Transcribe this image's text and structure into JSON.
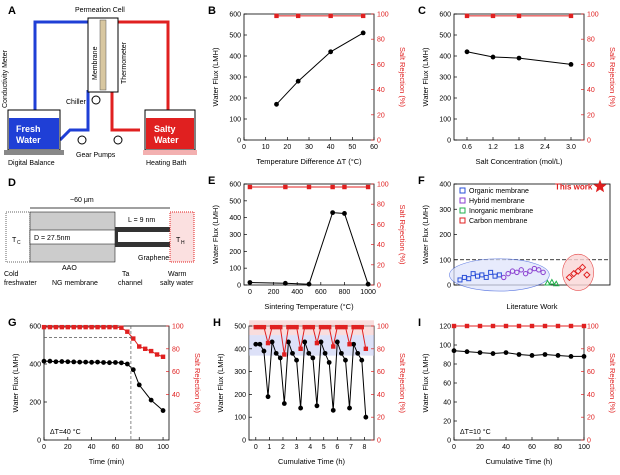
{
  "panel_A": {
    "label": "A",
    "permeation_cell": "Permeation Cell",
    "membrane": "Membrane",
    "thermometer": "Thermometer",
    "chiller": "Chiller",
    "fresh_water": [
      "Fresh",
      "Water"
    ],
    "salty_water": [
      "Salty",
      "Water"
    ],
    "conductivity_meter": "Conductivity Meter",
    "digital_balance": "Digital Balance",
    "gear_pumps": "Gear Pumps",
    "heating_bath": "Heating Bath",
    "colors": {
      "cold": "#1f3fd6",
      "hot": "#e02020"
    }
  },
  "panel_D": {
    "label": "D",
    "width": "~60 μm",
    "diameter": "D = 27.5nm",
    "length": "L = 9 nm",
    "aao": "AAO",
    "tc": "T",
    "tc_sub": "C",
    "th": "T",
    "th_sub": "H",
    "cold": [
      "Cold",
      "freshwater"
    ],
    "ng_membrane": "NG membrane",
    "ta": [
      "Ta",
      "channel"
    ],
    "graphene": "Graphene",
    "warm": [
      "Warm",
      "salty water"
    ]
  },
  "chart_data": [
    {
      "id": "B",
      "type": "line",
      "label": "B",
      "xlabel": "Temperature Difference ΔT (°C)",
      "ylabel": "Water Flux (LMH)",
      "y2label": "Salt Rejection (%)",
      "xlim": [
        0,
        60
      ],
      "ylim": [
        0,
        600
      ],
      "y2lim": [
        0,
        100
      ],
      "xticks": [
        "0",
        "10",
        "20",
        "30",
        "40",
        "50",
        "60"
      ],
      "yticks": [
        "0",
        "100",
        "200",
        "300",
        "400",
        "500",
        "600"
      ],
      "y2ticks": [
        "0",
        "20",
        "40",
        "60",
        "80",
        "100"
      ],
      "series": [
        {
          "name": "Water Flux",
          "axis": "left",
          "x": [
            15,
            25,
            40,
            55
          ],
          "values": [
            170,
            280,
            420,
            510
          ]
        },
        {
          "name": "Salt Rejection",
          "axis": "right",
          "x": [
            15,
            25,
            40,
            55
          ],
          "values": [
            98.5,
            98.5,
            98.5,
            98.5
          ]
        }
      ]
    },
    {
      "id": "C",
      "type": "line",
      "label": "C",
      "xlabel": "Salt Concentration (mol/L)",
      "ylabel": "Water Flux (LMH)",
      "y2label": "Salt Rejection (%)",
      "xlim": [
        0.3,
        3.3
      ],
      "ylim": [
        0,
        600
      ],
      "y2lim": [
        0,
        100
      ],
      "xticks": [
        "0.6",
        "1.2",
        "1.8",
        "2.4",
        "3.0"
      ],
      "yticks": [
        "0",
        "100",
        "200",
        "300",
        "400",
        "500",
        "600"
      ],
      "y2ticks": [
        "0",
        "20",
        "40",
        "60",
        "80",
        "100"
      ],
      "series": [
        {
          "name": "Water Flux",
          "axis": "left",
          "x": [
            0.6,
            1.2,
            1.8,
            3.0
          ],
          "values": [
            420,
            395,
            390,
            360
          ]
        },
        {
          "name": "Salt Rejection",
          "axis": "right",
          "x": [
            0.6,
            1.2,
            1.8,
            3.0
          ],
          "values": [
            98.5,
            98.5,
            98.5,
            98.5
          ]
        }
      ]
    },
    {
      "id": "E",
      "type": "line",
      "label": "E",
      "xlabel": "Sintering Temperature (°C)",
      "ylabel": "Water Flux (LMH)",
      "y2label": "Salt Rejection (%)",
      "xlim": [
        -50,
        1050
      ],
      "ylim": [
        0,
        600
      ],
      "y2lim": [
        0,
        100
      ],
      "xticks": [
        "0",
        "200",
        "400",
        "600",
        "800",
        "1000"
      ],
      "yticks": [
        "0",
        "100",
        "200",
        "300",
        "400",
        "500",
        "600"
      ],
      "y2ticks": [
        "0",
        "20",
        "40",
        "60",
        "80",
        "100"
      ],
      "series": [
        {
          "name": "Water Flux",
          "axis": "left",
          "x": [
            0,
            300,
            500,
            700,
            800,
            1000
          ],
          "values": [
            15,
            10,
            5,
            430,
            425,
            5
          ]
        },
        {
          "name": "Salt Rejection",
          "axis": "right",
          "x": [
            0,
            300,
            500,
            700,
            800,
            1000
          ],
          "values": [
            97,
            97,
            97,
            97,
            97,
            97
          ]
        }
      ]
    },
    {
      "id": "F",
      "type": "scatter",
      "label": "F",
      "xlabel": "Literature Work",
      "ylabel": "Water Flux (LMH)",
      "ylim": [
        0,
        400
      ],
      "yticks": [
        "0",
        "100",
        "200",
        "300",
        "400"
      ],
      "legend": [
        "Organic membrane",
        "Hybrid membrane",
        "Inorganic membrane",
        "Carbon membrane"
      ],
      "legend_colors": [
        "#2a4fd8",
        "#8a3fd0",
        "#22b14c",
        "#e02020"
      ],
      "annotation": "This work",
      "threshold": 100,
      "series": [
        {
          "name": "Organic membrane",
          "x": [
            1,
            2,
            3,
            4,
            5,
            6,
            7,
            8,
            9,
            10
          ],
          "values": [
            20,
            30,
            25,
            45,
            35,
            40,
            30,
            50,
            35,
            40
          ]
        },
        {
          "name": "Hybrid membrane",
          "x": [
            11,
            12,
            13,
            14,
            15,
            16,
            17,
            18,
            19,
            20
          ],
          "values": [
            30,
            45,
            55,
            50,
            60,
            45,
            55,
            65,
            60,
            50
          ]
        },
        {
          "name": "Inorganic membrane",
          "x": [
            21,
            22,
            23
          ],
          "values": [
            8,
            12,
            5
          ]
        },
        {
          "name": "Carbon membrane",
          "x": [
            26,
            27,
            28,
            29,
            30
          ],
          "values": [
            30,
            45,
            55,
            70,
            40
          ]
        },
        {
          "name": "This work",
          "x": [
            33
          ],
          "values": [
            390
          ]
        }
      ]
    },
    {
      "id": "G",
      "type": "line",
      "label": "G",
      "xlabel": "Time (min)",
      "ylabel": "Water Flux (LMH)",
      "y2label": "Salt Rejection (%)",
      "xlim": [
        0,
        105
      ],
      "ylim": [
        0,
        600
      ],
      "y2lim": [
        0,
        100
      ],
      "xticks": [
        "0",
        "20",
        "40",
        "60",
        "80",
        "100"
      ],
      "yticks": [
        "0",
        "200",
        "400",
        "600"
      ],
      "y2ticks": [
        "40",
        "60",
        "80",
        "100"
      ],
      "note": "ΔT=40 °C",
      "series": [
        {
          "name": "Water Flux",
          "axis": "left",
          "x": [
            0,
            5,
            10,
            15,
            20,
            25,
            30,
            35,
            40,
            45,
            50,
            55,
            60,
            65,
            70,
            75,
            80,
            90,
            100
          ],
          "values": [
            415,
            415,
            412,
            413,
            412,
            411,
            410,
            410,
            409,
            410,
            408,
            407,
            408,
            406,
            400,
            370,
            290,
            210,
            155
          ]
        },
        {
          "name": "Salt Rejection",
          "axis": "right",
          "x": [
            0,
            5,
            10,
            15,
            20,
            25,
            30,
            35,
            40,
            45,
            50,
            55,
            60,
            65,
            70,
            75,
            80,
            85,
            90,
            95,
            100
          ],
          "values": [
            99,
            99,
            99,
            99,
            99,
            99,
            99,
            99,
            99,
            99,
            99,
            99,
            99,
            98.5,
            95,
            89,
            82,
            80,
            78,
            75,
            73
          ]
        }
      ]
    },
    {
      "id": "H",
      "type": "line",
      "label": "H",
      "xlabel": "Cumulative Time (h)",
      "ylabel": "Water Flux (LMH)",
      "y2label": "Salt Rejection (%)",
      "xlim": [
        -0.5,
        8.7
      ],
      "ylim": [
        0,
        500
      ],
      "y2lim": [
        0,
        100
      ],
      "xticks": [
        "0",
        "1",
        "2",
        "3",
        "4",
        "5",
        "6",
        "7",
        "8"
      ],
      "yticks": [
        "0",
        "100",
        "200",
        "300",
        "400",
        "500"
      ],
      "y2ticks": [
        "0",
        "20",
        "40",
        "60",
        "80",
        "100"
      ],
      "series": [
        {
          "name": "Water Flux",
          "axis": "left",
          "x": [
            0,
            0.3,
            0.6,
            0.9,
            1.2,
            1.5,
            1.8,
            2.1,
            2.4,
            2.7,
            3.0,
            3.3,
            3.6,
            3.9,
            4.2,
            4.5,
            4.8,
            5.1,
            5.4,
            5.7,
            6.0,
            6.3,
            6.6,
            6.9,
            7.2,
            7.5,
            7.8,
            8.1
          ],
          "values": [
            420,
            420,
            390,
            190,
            430,
            380,
            360,
            160,
            430,
            380,
            350,
            140,
            430,
            380,
            360,
            150,
            430,
            380,
            340,
            130,
            430,
            380,
            350,
            140,
            420,
            380,
            350,
            100
          ]
        },
        {
          "name": "Salt Rejection",
          "axis": "right",
          "x": [
            0,
            0.3,
            0.6,
            0.9,
            1.2,
            1.5,
            1.8,
            2.1,
            2.4,
            2.7,
            3.0,
            3.3,
            3.6,
            3.9,
            4.2,
            4.5,
            4.8,
            5.1,
            5.4,
            5.7,
            6.0,
            6.3,
            6.6,
            6.9,
            7.2,
            7.5,
            7.8,
            8.1
          ],
          "values": [
            99,
            99,
            99,
            85,
            99,
            99,
            99,
            75,
            99,
            99,
            99,
            80,
            99,
            99,
            99,
            85,
            99,
            99,
            99,
            82,
            99,
            99,
            99,
            84,
            99,
            99,
            99,
            80
          ]
        }
      ]
    },
    {
      "id": "I",
      "type": "line",
      "label": "I",
      "xlabel": "Cumulative Time (h)",
      "ylabel": "Water Flux (LMH)",
      "y2label": "Salt Rejection (%)",
      "xlim": [
        0,
        100
      ],
      "ylim": [
        0,
        120
      ],
      "y2lim": [
        0,
        100
      ],
      "xticks": [
        "0",
        "20",
        "40",
        "60",
        "80",
        "100"
      ],
      "yticks": [
        "0",
        "20",
        "40",
        "60",
        "80",
        "100",
        "120"
      ],
      "y2ticks": [
        "0",
        "20",
        "40",
        "60",
        "80",
        "100"
      ],
      "note": "ΔT=10 °C",
      "series": [
        {
          "name": "Water Flux",
          "axis": "left",
          "x": [
            0,
            10,
            20,
            30,
            40,
            50,
            60,
            70,
            80,
            90,
            100
          ],
          "values": [
            94,
            93,
            92,
            91,
            92,
            90,
            89,
            90,
            89,
            88,
            88
          ]
        },
        {
          "name": "Salt Rejection",
          "axis": "right",
          "x": [
            0,
            10,
            20,
            30,
            40,
            50,
            60,
            70,
            80,
            90,
            100
          ],
          "values": [
            100,
            100,
            100,
            100,
            100,
            100,
            100,
            100,
            100,
            100,
            100
          ]
        }
      ]
    }
  ]
}
